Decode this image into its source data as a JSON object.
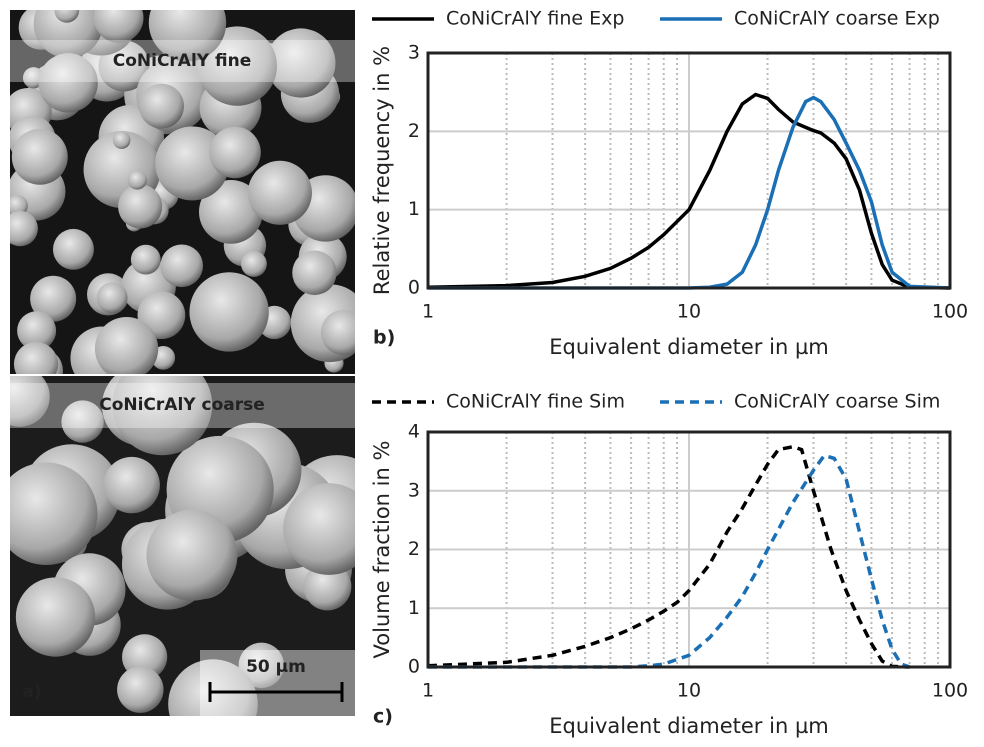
{
  "images": [
    {
      "label": "CoNiCrAlY fine"
    },
    {
      "label": "CoNiCrAlY coarse",
      "scale_bar": "50 µm",
      "panel": "a)"
    }
  ],
  "chart_data": [
    {
      "type": "line",
      "panel": "b)",
      "xlabel": "Equivalent diameter in µm",
      "ylabel": "Relative frequency in %",
      "log_x": true,
      "xlim": [
        1,
        100
      ],
      "xticks": [
        1,
        10,
        100
      ],
      "minor_xticks": [
        2,
        3,
        4,
        5,
        6,
        7,
        8,
        9,
        20,
        30,
        40,
        50,
        60,
        70,
        80,
        90
      ],
      "ylim": [
        0,
        3
      ],
      "yticks": [
        0,
        1,
        2,
        3
      ],
      "grid": true,
      "legend": "top",
      "series": [
        {
          "name": "CoNiCrAlY fine Exp",
          "color": "#000000",
          "dash": false,
          "x": [
            1,
            2,
            3,
            4,
            5,
            6,
            7,
            8,
            10,
            12,
            14,
            16,
            18,
            20,
            22,
            25,
            28,
            30,
            32,
            36,
            40,
            45,
            50,
            55,
            60,
            70,
            100
          ],
          "values": [
            0.01,
            0.03,
            0.07,
            0.15,
            0.25,
            0.38,
            0.52,
            0.68,
            1.0,
            1.5,
            2.0,
            2.35,
            2.47,
            2.42,
            2.28,
            2.12,
            2.05,
            2.01,
            1.98,
            1.85,
            1.65,
            1.25,
            0.7,
            0.3,
            0.1,
            0.01,
            0
          ]
        },
        {
          "name": "CoNiCrAlY coarse Exp",
          "color": "#1a6fb5",
          "dash": false,
          "x": [
            1,
            2,
            3,
            4,
            5,
            6,
            7,
            8,
            10,
            12,
            14,
            16,
            18,
            20,
            22,
            25,
            28,
            30,
            32,
            36,
            40,
            45,
            50,
            55,
            60,
            70,
            100
          ],
          "values": [
            0,
            0,
            0,
            0,
            0,
            0,
            0,
            0,
            0,
            0.01,
            0.05,
            0.2,
            0.55,
            1.0,
            1.5,
            2.05,
            2.38,
            2.43,
            2.38,
            2.15,
            1.85,
            1.5,
            1.1,
            0.55,
            0.2,
            0.02,
            0
          ]
        }
      ]
    },
    {
      "type": "line",
      "panel": "c)",
      "xlabel": "Equivalent diameter in µm",
      "ylabel": "Volume fraction in %",
      "log_x": true,
      "xlim": [
        1,
        100
      ],
      "xticks": [
        1,
        10,
        100
      ],
      "minor_xticks": [
        2,
        3,
        4,
        5,
        6,
        7,
        8,
        9,
        20,
        30,
        40,
        50,
        60,
        70,
        80,
        90
      ],
      "ylim": [
        0,
        4
      ],
      "yticks": [
        0,
        1,
        2,
        3,
        4
      ],
      "grid": true,
      "legend": "top",
      "series": [
        {
          "name": "CoNiCrAlY fine Sim",
          "color": "#000000",
          "dash": true,
          "x": [
            1,
            2,
            3,
            4,
            5,
            6,
            7,
            8,
            9,
            10,
            12,
            14,
            16,
            18,
            20,
            22,
            25,
            27,
            30,
            35,
            40,
            45,
            50,
            55,
            60,
            70
          ],
          "values": [
            0.02,
            0.08,
            0.2,
            0.35,
            0.5,
            0.65,
            0.8,
            0.95,
            1.1,
            1.3,
            1.75,
            2.3,
            2.7,
            3.1,
            3.45,
            3.7,
            3.75,
            3.7,
            3.0,
            2.0,
            1.3,
            0.8,
            0.4,
            0.1,
            0.01,
            0
          ]
        },
        {
          "name": "CoNiCrAlY coarse Sim",
          "color": "#1a6fb5",
          "dash": true,
          "x": [
            1,
            2,
            3,
            4,
            5,
            6,
            7,
            8,
            10,
            12,
            14,
            16,
            18,
            20,
            25,
            30,
            33,
            36,
            40,
            45,
            50,
            55,
            60,
            65,
            70
          ],
          "values": [
            0,
            0,
            0,
            0,
            0,
            0,
            0.02,
            0.05,
            0.2,
            0.5,
            0.85,
            1.2,
            1.6,
            2.0,
            2.8,
            3.35,
            3.6,
            3.55,
            3.2,
            2.3,
            1.5,
            0.8,
            0.3,
            0.05,
            0
          ]
        }
      ]
    }
  ]
}
